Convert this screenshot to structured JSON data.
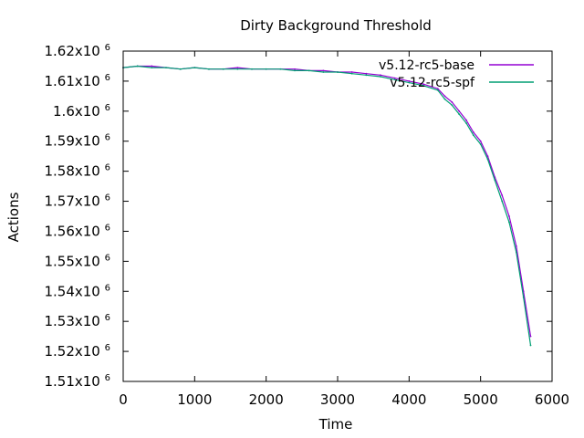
{
  "chart_data": {
    "type": "line",
    "title": "Dirty Background Threshold",
    "xlabel": "Time",
    "ylabel": "Actions",
    "xlim": [
      0,
      6000
    ],
    "ylim": [
      1510000,
      1620000
    ],
    "x_ticks": [
      {
        "value": 0,
        "label": "0"
      },
      {
        "value": 1000,
        "label": "1000"
      },
      {
        "value": 2000,
        "label": "2000"
      },
      {
        "value": 3000,
        "label": "3000"
      },
      {
        "value": 4000,
        "label": "4000"
      },
      {
        "value": 5000,
        "label": "5000"
      },
      {
        "value": 6000,
        "label": "6000"
      }
    ],
    "y_ticks": [
      {
        "value": 1510000,
        "mantissa": "1.51x10",
        "exp": "6"
      },
      {
        "value": 1520000,
        "mantissa": "1.52x10",
        "exp": "6"
      },
      {
        "value": 1530000,
        "mantissa": "1.53x10",
        "exp": "6"
      },
      {
        "value": 1540000,
        "mantissa": "1.54x10",
        "exp": "6"
      },
      {
        "value": 1550000,
        "mantissa": "1.55x10",
        "exp": "6"
      },
      {
        "value": 1560000,
        "mantissa": "1.56x10",
        "exp": "6"
      },
      {
        "value": 1570000,
        "mantissa": "1.57x10",
        "exp": "6"
      },
      {
        "value": 1580000,
        "mantissa": "1.58x10",
        "exp": "6"
      },
      {
        "value": 1590000,
        "mantissa": "1.59x10",
        "exp": "6"
      },
      {
        "value": 1600000,
        "mantissa": "1.6x10",
        "exp": "6"
      },
      {
        "value": 1610000,
        "mantissa": "1.61x10",
        "exp": "6"
      },
      {
        "value": 1620000,
        "mantissa": "1.62x10",
        "exp": "6"
      }
    ],
    "grid": false,
    "legend_position": "top-right",
    "series": [
      {
        "name": "v5.12-rc5-base",
        "color": "#9400d3",
        "x": [
          0,
          200,
          400,
          600,
          800,
          1000,
          1200,
          1400,
          1600,
          1800,
          2000,
          2200,
          2400,
          2600,
          2800,
          3000,
          3200,
          3400,
          3600,
          3800,
          4000,
          4200,
          4400,
          4500,
          4600,
          4700,
          4800,
          4900,
          5000,
          5100,
          5200,
          5300,
          5400,
          5500,
          5600,
          5700
        ],
        "y": [
          1614500,
          1615000,
          1615000,
          1614500,
          1614000,
          1614500,
          1614000,
          1614000,
          1614500,
          1614000,
          1614000,
          1614000,
          1614000,
          1613500,
          1613500,
          1613000,
          1613000,
          1612500,
          1612000,
          1611000,
          1610000,
          1609000,
          1607500,
          1605000,
          1603000,
          1600000,
          1597000,
          1593000,
          1590000,
          1585000,
          1578000,
          1572000,
          1565000,
          1555000,
          1540000,
          1525000
        ]
      },
      {
        "name": "v5.12-rc5-spf",
        "color": "#009e73",
        "x": [
          0,
          200,
          400,
          600,
          800,
          1000,
          1200,
          1400,
          1600,
          1800,
          2000,
          2200,
          2400,
          2600,
          2800,
          3000,
          3200,
          3400,
          3600,
          3800,
          4000,
          4200,
          4400,
          4500,
          4600,
          4700,
          4800,
          4900,
          5000,
          5100,
          5200,
          5300,
          5400,
          5500,
          5600,
          5700
        ],
        "y": [
          1614500,
          1615000,
          1614500,
          1614500,
          1614000,
          1614500,
          1614000,
          1614000,
          1614000,
          1614000,
          1614000,
          1614000,
          1613500,
          1613500,
          1613000,
          1613000,
          1612500,
          1612000,
          1611500,
          1610500,
          1609500,
          1608500,
          1607000,
          1604000,
          1602000,
          1599000,
          1596000,
          1592000,
          1589000,
          1584000,
          1577000,
          1570000,
          1563000,
          1553000,
          1538000,
          1522000
        ]
      }
    ]
  }
}
